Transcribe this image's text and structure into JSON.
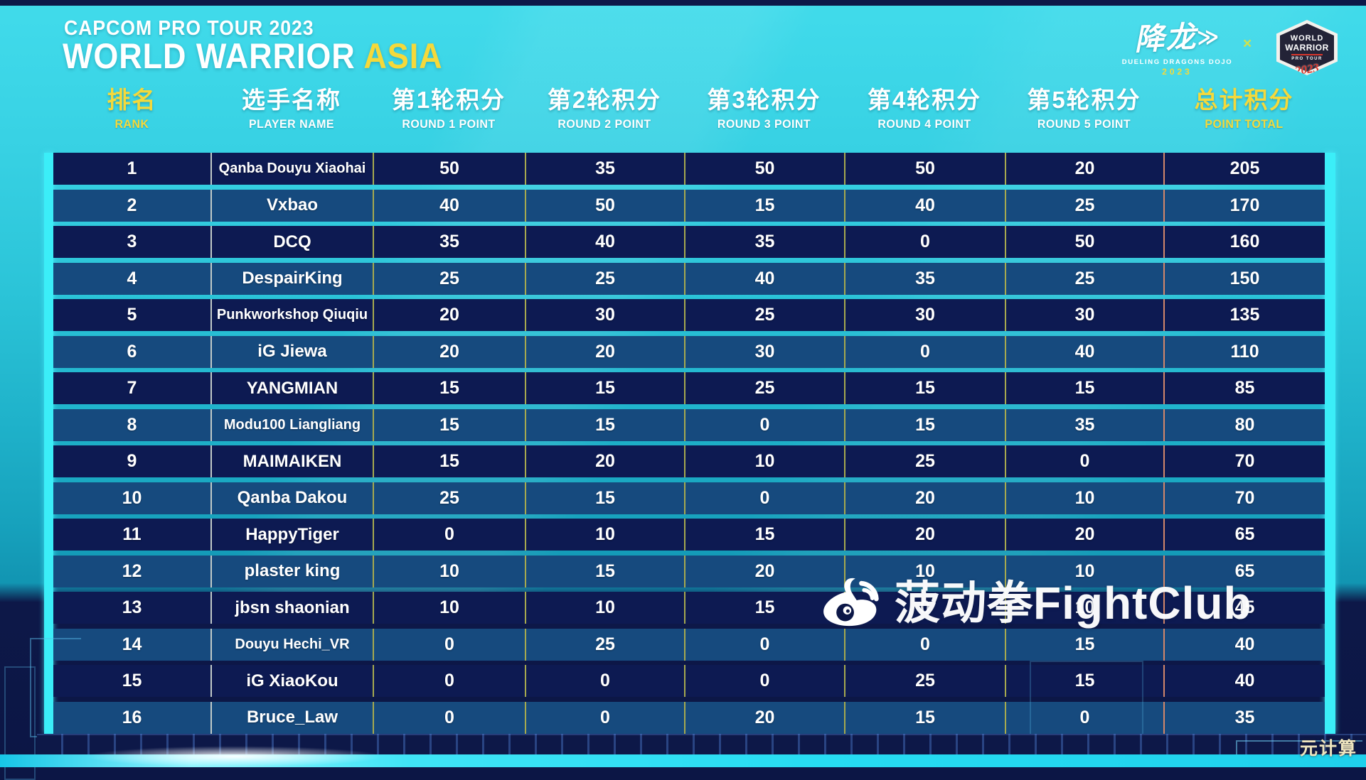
{
  "header": {
    "tour": "CAPCOM PRO TOUR 2023",
    "title_white": "WORLD WARRIOR",
    "title_accent": "ASIA"
  },
  "logos": {
    "dojo_cn": "降龙",
    "dojo_arrow": "≫",
    "dojo_en": "DUELING DRAGONS DOJO",
    "dojo_year": "2023",
    "separator": "×",
    "badge_line1": "WORLD",
    "badge_line2": "WARRIOR",
    "badge_line3": "PRO TOUR",
    "badge_year": "2023"
  },
  "colors": {
    "accent_yellow": "#f5d93a",
    "row_dark": "#0d1a52",
    "row_light": "#164a7e",
    "cyan_border": "#3beef8",
    "background_teal": "#2bc4d8",
    "background_navy": "#0c1645"
  },
  "chart_data": {
    "type": "table",
    "title": "CAPCOM PRO TOUR 2023 WORLD WARRIOR ASIA — standings",
    "columns": [
      {
        "zh": "排名",
        "en": "RANK",
        "accent": true
      },
      {
        "zh": "选手名称",
        "en": "PLAYER NAME",
        "accent": false
      },
      {
        "zh": "第1轮积分",
        "en": "ROUND 1 POINT",
        "accent": false
      },
      {
        "zh": "第2轮积分",
        "en": "ROUND 2 POINT",
        "accent": false
      },
      {
        "zh": "第3轮积分",
        "en": "ROUND 3 POINT",
        "accent": false
      },
      {
        "zh": "第4轮积分",
        "en": "ROUND 4 POINT",
        "accent": false
      },
      {
        "zh": "第5轮积分",
        "en": "ROUND 5 POINT",
        "accent": false
      },
      {
        "zh": "总计积分",
        "en": "POINT TOTAL",
        "accent": true
      }
    ],
    "rows": [
      {
        "rank": 1,
        "player": "Qanba Douyu Xiaohai",
        "points": [
          50,
          35,
          50,
          50,
          20
        ],
        "total": 205
      },
      {
        "rank": 2,
        "player": "Vxbao",
        "points": [
          40,
          50,
          15,
          40,
          25
        ],
        "total": 170
      },
      {
        "rank": 3,
        "player": "DCQ",
        "points": [
          35,
          40,
          35,
          0,
          50
        ],
        "total": 160
      },
      {
        "rank": 4,
        "player": "DespairKing",
        "points": [
          25,
          25,
          40,
          35,
          25
        ],
        "total": 150
      },
      {
        "rank": 5,
        "player": "Punkworkshop Qiuqiu",
        "points": [
          20,
          30,
          25,
          30,
          30
        ],
        "total": 135
      },
      {
        "rank": 6,
        "player": "iG Jiewa",
        "points": [
          20,
          20,
          30,
          0,
          40
        ],
        "total": 110
      },
      {
        "rank": 7,
        "player": "YANGMIAN",
        "points": [
          15,
          15,
          25,
          15,
          15
        ],
        "total": 85
      },
      {
        "rank": 8,
        "player": "Modu100 Liangliang",
        "points": [
          15,
          15,
          0,
          15,
          35
        ],
        "total": 80
      },
      {
        "rank": 9,
        "player": "MAIMAIKEN",
        "points": [
          15,
          20,
          10,
          25,
          0
        ],
        "total": 70
      },
      {
        "rank": 10,
        "player": "Qanba Dakou",
        "points": [
          25,
          15,
          0,
          20,
          10
        ],
        "total": 70
      },
      {
        "rank": 11,
        "player": "HappyTiger",
        "points": [
          0,
          10,
          15,
          20,
          20
        ],
        "total": 65
      },
      {
        "rank": 12,
        "player": "plaster king",
        "points": [
          10,
          15,
          20,
          10,
          10
        ],
        "total": 65
      },
      {
        "rank": 13,
        "player": "jbsn shaonian",
        "points": [
          10,
          10,
          15,
          0,
          10
        ],
        "total": 45
      },
      {
        "rank": 14,
        "player": "Douyu Hechi_VR",
        "points": [
          0,
          25,
          0,
          0,
          15
        ],
        "total": 40
      },
      {
        "rank": 15,
        "player": "iG XiaoKou",
        "points": [
          0,
          0,
          0,
          25,
          15
        ],
        "total": 40
      },
      {
        "rank": 16,
        "player": "Bruce_Law",
        "points": [
          0,
          0,
          20,
          15,
          0
        ],
        "total": 35
      }
    ]
  },
  "watermark": {
    "text": "菠动拳FightClub",
    "sub": "元计算"
  }
}
